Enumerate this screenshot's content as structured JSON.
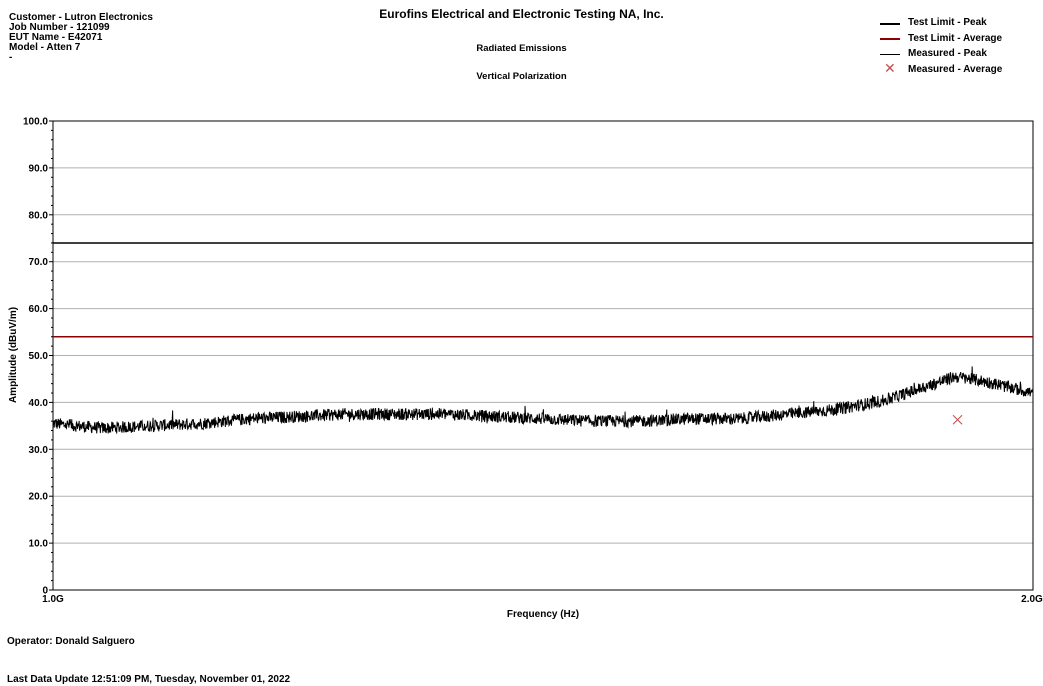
{
  "header": {
    "info_lines": [
      "Customer - Lutron Electronics",
      "Job Number - 121099",
      "EUT Name - E42071",
      "Model - Atten 7",
      "-"
    ],
    "title": "Eurofins Electrical and Electronic Testing NA, Inc.",
    "subtitle1": "Radiated Emissions",
    "subtitle2": "Vertical Polarization"
  },
  "legend": [
    {
      "label": "Test Limit - Peak",
      "icon": "thick-line",
      "color": "#000000"
    },
    {
      "label": "Test Limit - Average",
      "icon": "line",
      "color": "#8b0000"
    },
    {
      "label": "Measured - Peak",
      "icon": "thin-line",
      "color": "#000000"
    },
    {
      "label": "Measured - Average",
      "icon": "x-marker",
      "color": "#c0504d"
    }
  ],
  "chart_data": {
    "type": "line",
    "xlabel": "Frequency (Hz)",
    "ylabel": "Amplitude (dBuV/m)",
    "ylim": [
      0,
      100
    ],
    "xlim": [
      1.0,
      2.0
    ],
    "x_tick_labels": [
      "1.0G",
      "2.0G"
    ],
    "y_tick_labels": [
      "0",
      "10.0",
      "20.0",
      "30.0",
      "40.0",
      "50.0",
      "60.0",
      "70.0",
      "80.0",
      "90.0",
      "100.0"
    ],
    "grid": true,
    "series": [
      {
        "name": "Test Limit - Peak",
        "color": "#000000",
        "x": [
          1.0,
          2.0
        ],
        "values": [
          74,
          74
        ]
      },
      {
        "name": "Test Limit - Average",
        "color": "#8b0000",
        "x": [
          1.0,
          2.0
        ],
        "values": [
          54,
          54
        ]
      },
      {
        "name": "Measured - Peak",
        "color": "#000000",
        "x": [
          1.0,
          1.05,
          1.1,
          1.15,
          1.2,
          1.25,
          1.3,
          1.35,
          1.4,
          1.45,
          1.5,
          1.55,
          1.6,
          1.65,
          1.7,
          1.75,
          1.8,
          1.85,
          1.9,
          1.92,
          1.95,
          2.0
        ],
        "values": [
          35.5,
          34.5,
          35.0,
          35.5,
          36.5,
          37.0,
          37.5,
          37.5,
          37.5,
          37.0,
          36.5,
          36.0,
          36.0,
          36.5,
          36.5,
          37.5,
          38.5,
          40.5,
          44.0,
          45.5,
          44.5,
          42.0
        ]
      },
      {
        "name": "Measured - Average",
        "color": "#c0504d",
        "x": [
          1.923
        ],
        "values": [
          36.3
        ]
      }
    ]
  },
  "footer": {
    "operator": "Operator: Donald Salguero",
    "last_update": "Last Data Update 12:51:09 PM, Tuesday, November 01, 2022"
  }
}
